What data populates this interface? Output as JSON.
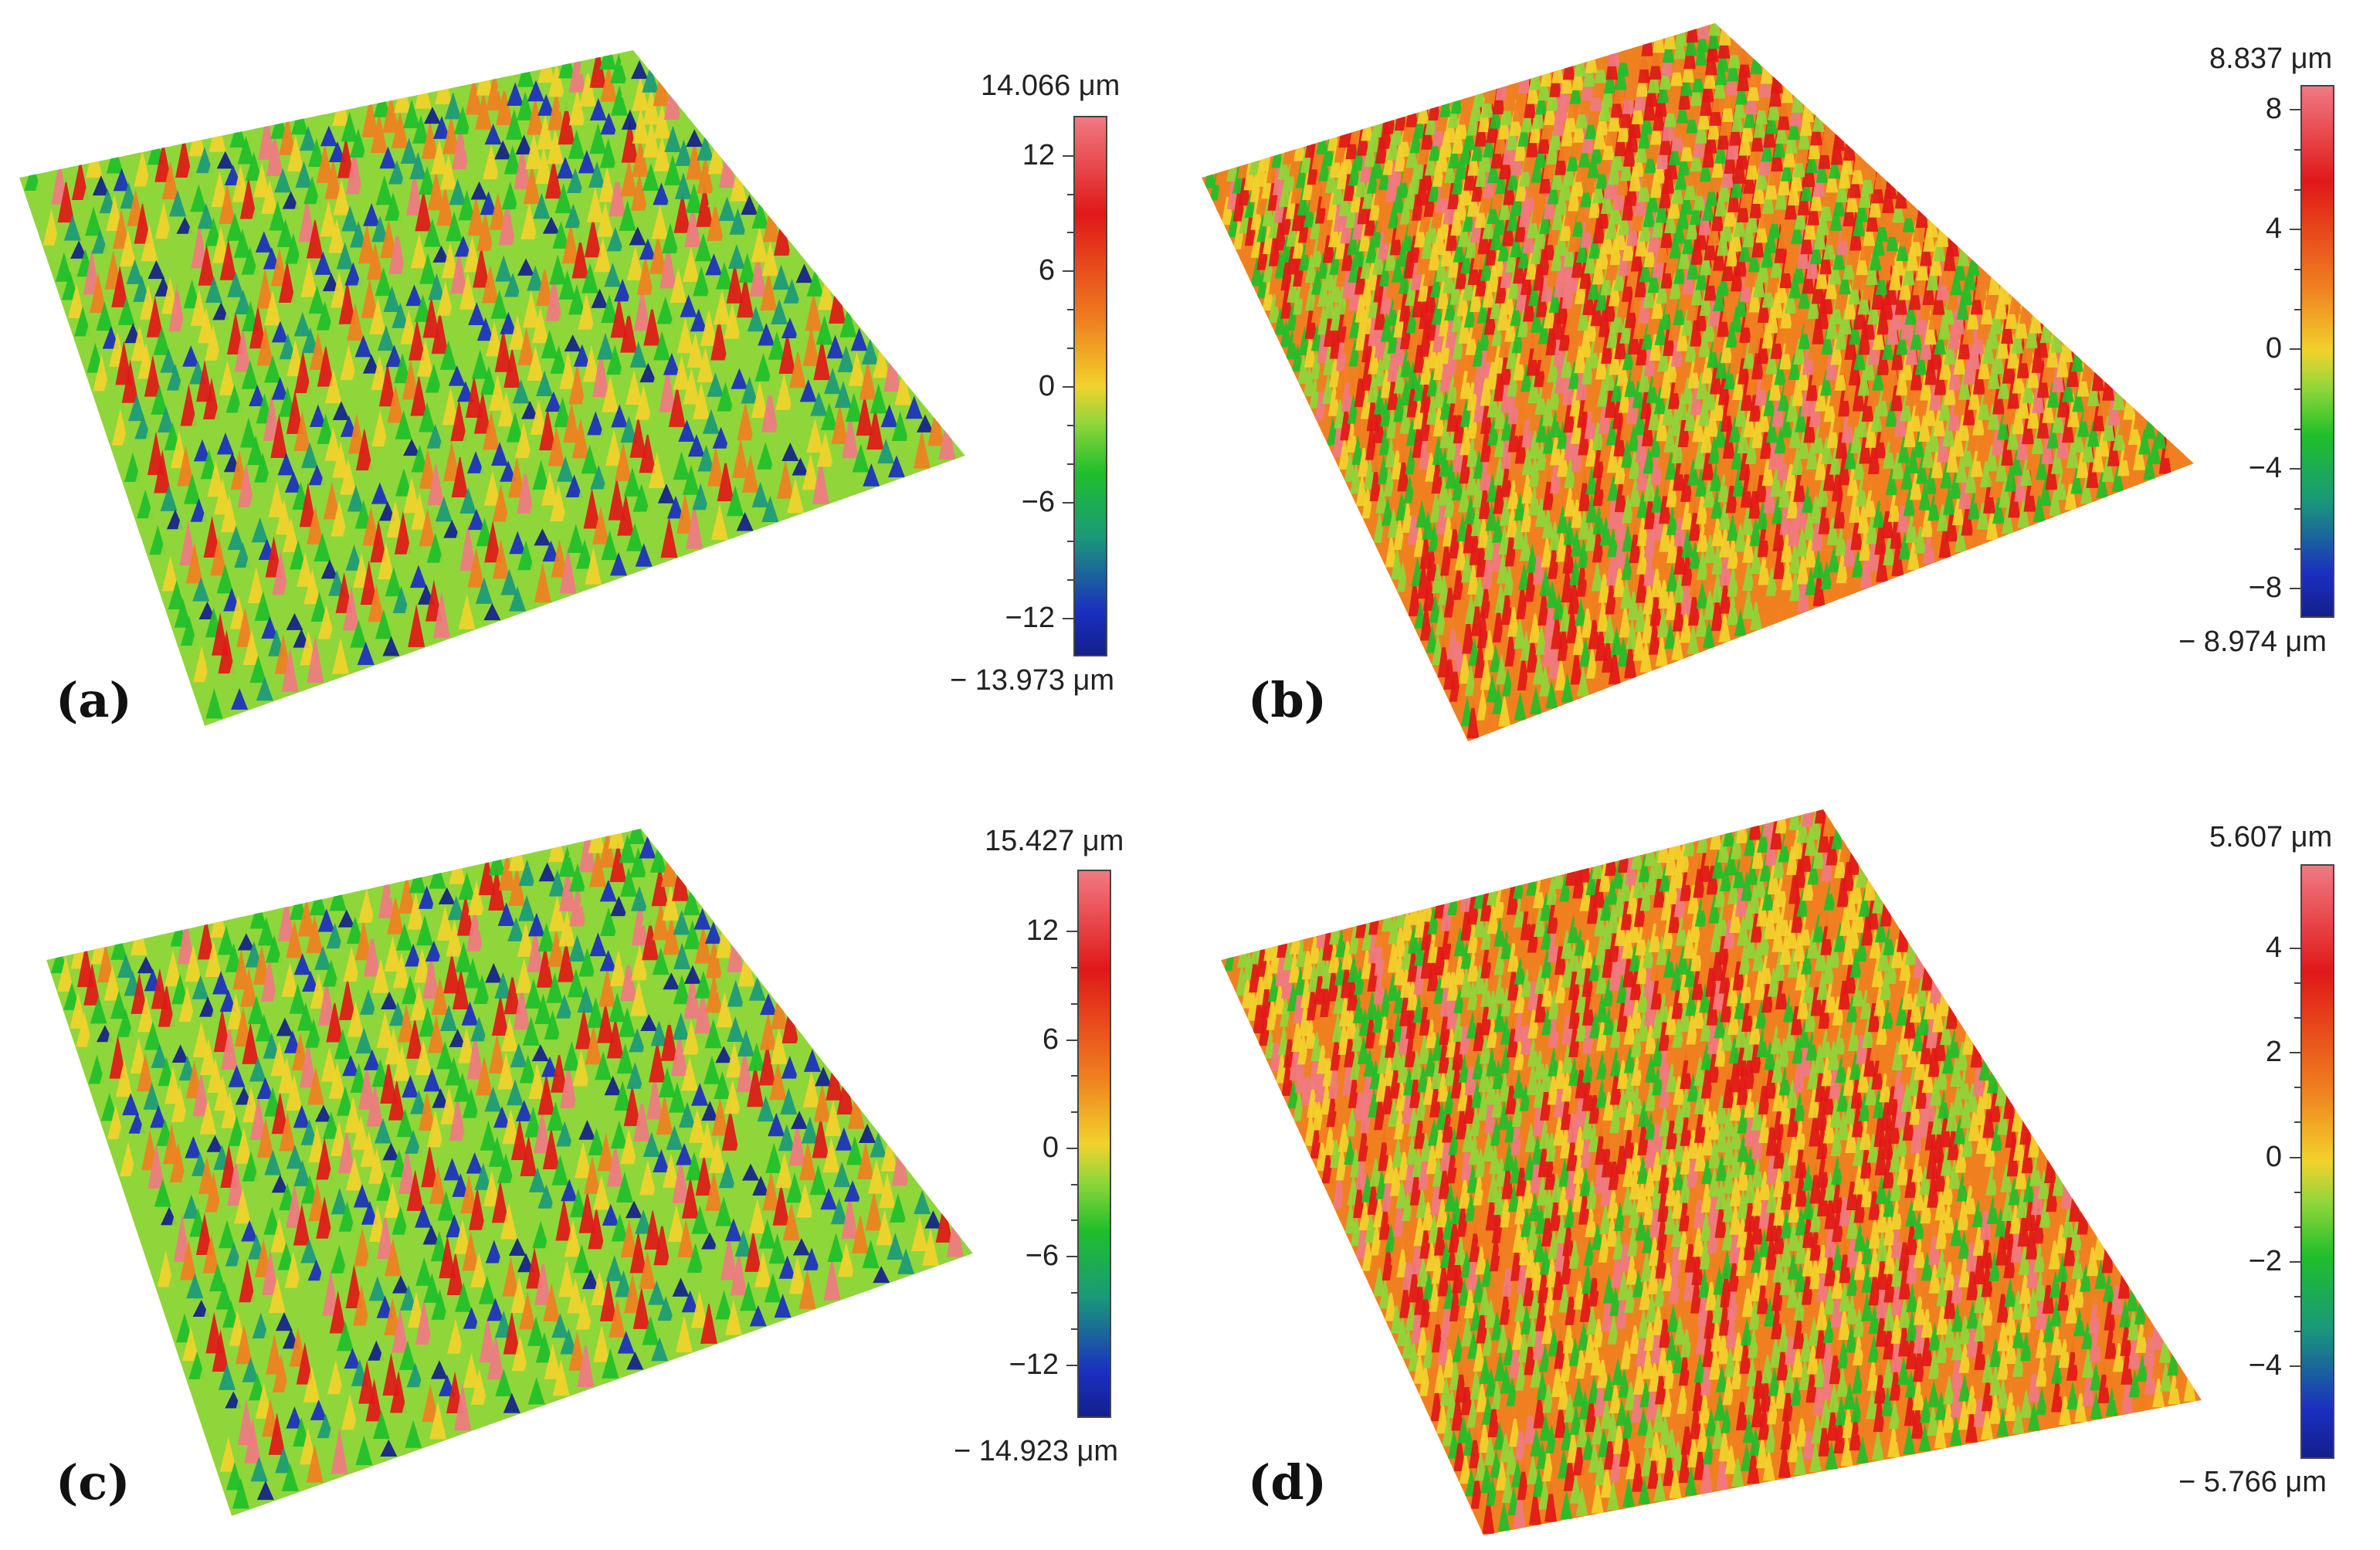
{
  "panels": [
    {
      "id": "a",
      "label": "(a)",
      "colorbar": {
        "max_label": "14.066 μm",
        "min_label": "− 13.973 μm",
        "max": 14.066,
        "min": -13.973,
        "ticks": [
          "12",
          "6",
          "0",
          "−6",
          "−12"
        ],
        "tick_values": [
          12,
          6,
          0,
          -6,
          -12
        ]
      },
      "surface_pattern": "periodic-grid"
    },
    {
      "id": "b",
      "label": "(b)",
      "colorbar": {
        "max_label": "8.837 μm",
        "min_label": "− 8.974 μm",
        "max": 8.837,
        "min": -8.974,
        "ticks": [
          "8",
          "4",
          "0",
          "−4",
          "−8"
        ],
        "tick_values": [
          8,
          4,
          0,
          -4,
          -8
        ]
      },
      "surface_pattern": "dense-random"
    },
    {
      "id": "c",
      "label": "(c)",
      "colorbar": {
        "max_label": "15.427 μm",
        "min_label": "− 14.923 μm",
        "max": 15.427,
        "min": -14.923,
        "ticks": [
          "12",
          "6",
          "0",
          "−6",
          "−12"
        ],
        "tick_values": [
          12,
          6,
          0,
          -6,
          -12
        ]
      },
      "surface_pattern": "periodic-grid"
    },
    {
      "id": "d",
      "label": "(d)",
      "colorbar": {
        "max_label": "5.607 μm",
        "min_label": "− 5.766 μm",
        "max": 5.607,
        "min": -5.766,
        "ticks": [
          "4",
          "2",
          "0",
          "−2",
          "−4"
        ],
        "tick_values": [
          4,
          2,
          0,
          -2,
          -4
        ]
      },
      "surface_pattern": "dense-random"
    }
  ],
  "colormap": [
    "#13208c",
    "#1a2fc0",
    "#1a9a78",
    "#1fbf2a",
    "#8fd63a",
    "#f2d22c",
    "#f08020",
    "#e01818",
    "#f07a82"
  ]
}
